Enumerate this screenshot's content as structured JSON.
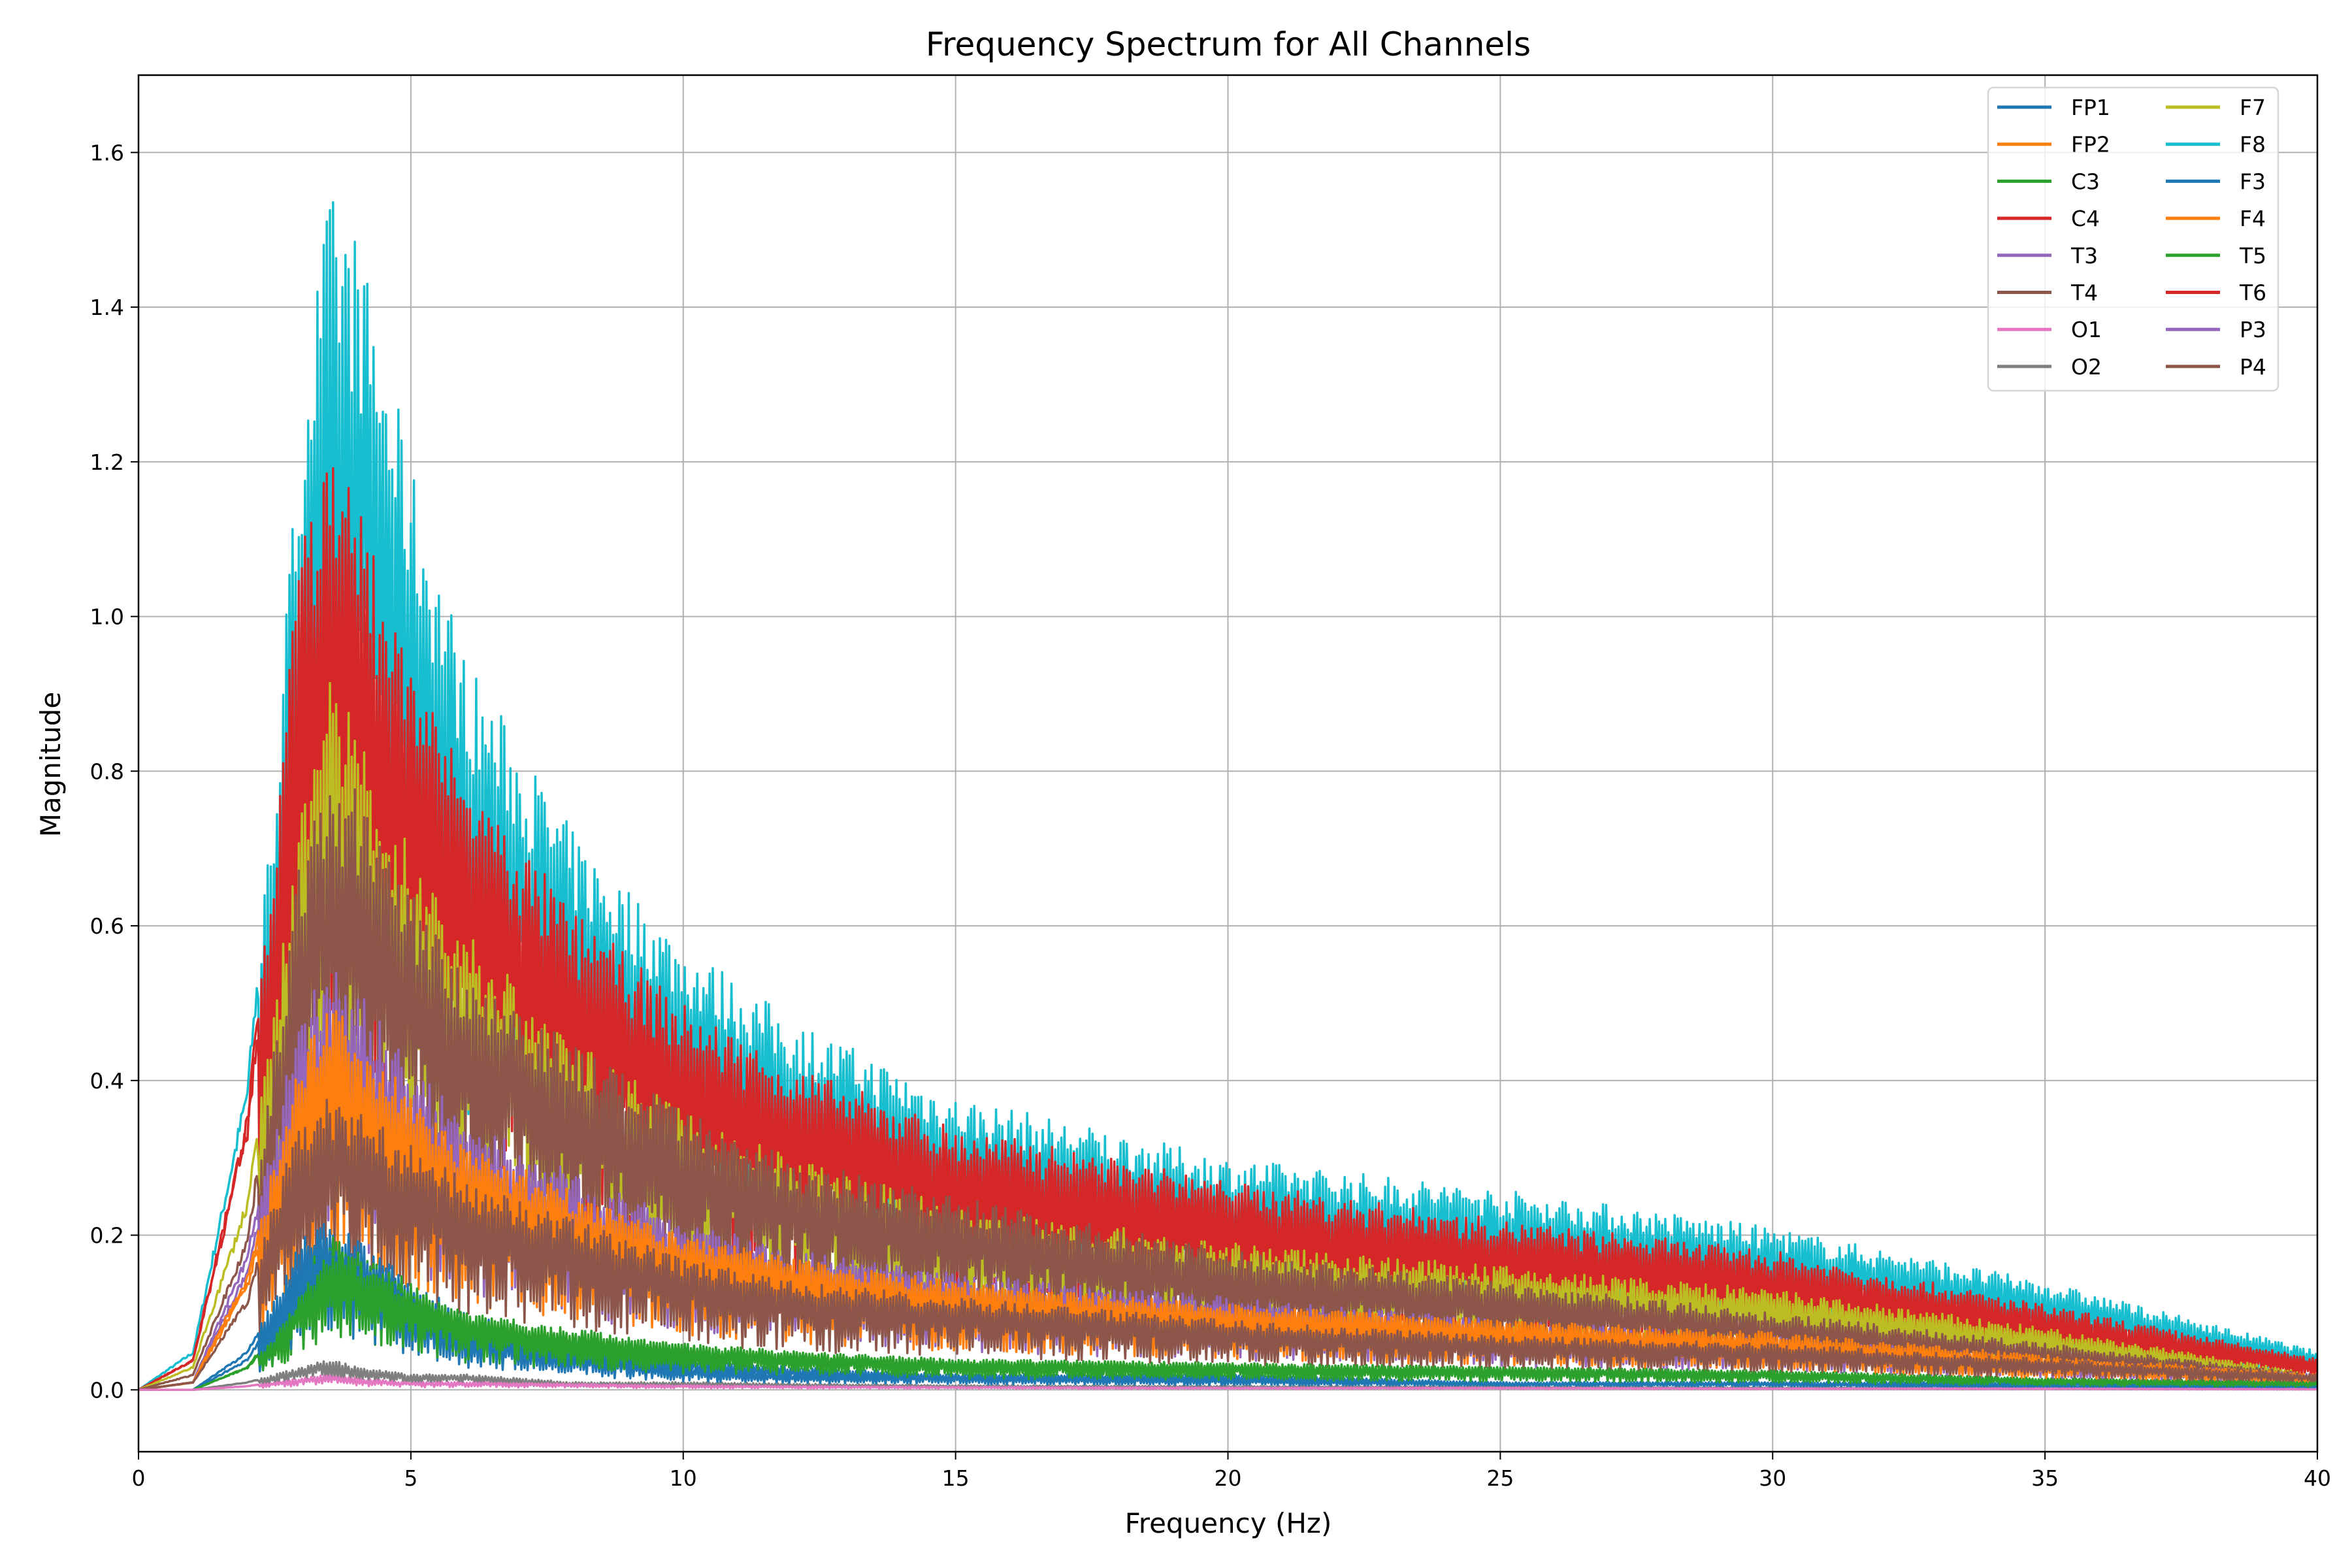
{
  "chart_data": {
    "type": "line",
    "title": "Frequency Spectrum for All Channels",
    "xlabel": "Frequency (Hz)",
    "ylabel": "Magnitude",
    "xlim": [
      0,
      40
    ],
    "ylim": [
      -0.08,
      1.7
    ],
    "xticks": [
      "0",
      "5",
      "10",
      "15",
      "20",
      "25",
      "30",
      "35",
      "40"
    ],
    "yticks": [
      "0.0",
      "0.2",
      "0.4",
      "0.6",
      "0.8",
      "1.0",
      "1.2",
      "1.4",
      "1.6"
    ],
    "grid": true,
    "legend_placement": "top-right",
    "legend_columns": 2,
    "x": [
      0,
      1,
      2,
      2.5,
      3,
      3.5,
      4,
      5,
      6,
      8,
      10,
      12,
      15,
      20,
      25,
      30,
      35,
      40
    ],
    "series": [
      {
        "name": "FP1",
        "color": "#1f77b4",
        "values": [
          0,
          0,
          0.05,
          0.12,
          0.2,
          0.22,
          0.2,
          0.14,
          0.1,
          0.06,
          0.04,
          0.03,
          0.02,
          0.02,
          0.01,
          0.01,
          0.01,
          0.005
        ]
      },
      {
        "name": "FP2",
        "color": "#ff7f0e",
        "values": [
          0,
          0.01,
          0.15,
          0.3,
          0.45,
          0.5,
          0.47,
          0.38,
          0.32,
          0.26,
          0.2,
          0.17,
          0.14,
          0.11,
          0.09,
          0.07,
          0.04,
          0.02
        ]
      },
      {
        "name": "C3",
        "color": "#2ca02c",
        "values": [
          0,
          0,
          0.03,
          0.08,
          0.15,
          0.2,
          0.18,
          0.14,
          0.1,
          0.08,
          0.06,
          0.05,
          0.04,
          0.035,
          0.03,
          0.025,
          0.015,
          0.01
        ]
      },
      {
        "name": "C4",
        "color": "#d62728",
        "values": [
          0,
          0.04,
          0.35,
          0.7,
          1.1,
          1.2,
          1.12,
          0.93,
          0.78,
          0.6,
          0.48,
          0.4,
          0.33,
          0.26,
          0.21,
          0.17,
          0.1,
          0.04
        ]
      },
      {
        "name": "T3",
        "color": "#9467bd",
        "values": [
          0,
          0.01,
          0.18,
          0.35,
          0.5,
          0.55,
          0.52,
          0.42,
          0.35,
          0.28,
          0.22,
          0.18,
          0.15,
          0.12,
          0.09,
          0.07,
          0.04,
          0.02
        ]
      },
      {
        "name": "T4",
        "color": "#8c564b",
        "values": [
          0,
          0.02,
          0.2,
          0.45,
          0.7,
          0.8,
          0.78,
          0.65,
          0.55,
          0.45,
          0.36,
          0.3,
          0.25,
          0.18,
          0.14,
          0.1,
          0.06,
          0.02
        ]
      },
      {
        "name": "O1",
        "color": "#e377c2",
        "values": [
          0,
          0,
          0.005,
          0.01,
          0.015,
          0.02,
          0.015,
          0.01,
          0.01,
          0.008,
          0.006,
          0.005,
          0.004,
          0.003,
          0.003,
          0.002,
          0.002,
          0.001
        ]
      },
      {
        "name": "O2",
        "color": "#7f7f7f",
        "values": [
          0,
          0,
          0.01,
          0.02,
          0.03,
          0.04,
          0.03,
          0.02,
          0.02,
          0.01,
          0.01,
          0.008,
          0.006,
          0.005,
          0.004,
          0.003,
          0.002,
          0.001
        ]
      },
      {
        "name": "F7",
        "color": "#bcbd22",
        "values": [
          0,
          0.03,
          0.25,
          0.5,
          0.8,
          0.92,
          0.86,
          0.7,
          0.6,
          0.45,
          0.36,
          0.3,
          0.24,
          0.19,
          0.16,
          0.13,
          0.08,
          0.02
        ]
      },
      {
        "name": "F8",
        "color": "#17becf",
        "values": [
          0,
          0.05,
          0.4,
          0.8,
          1.3,
          1.55,
          1.5,
          1.2,
          0.95,
          0.72,
          0.58,
          0.48,
          0.38,
          0.3,
          0.26,
          0.21,
          0.14,
          0.05
        ]
      },
      {
        "name": "F3",
        "color": "#1f77b4",
        "values": [
          0,
          0,
          0.04,
          0.1,
          0.18,
          0.2,
          0.18,
          0.12,
          0.08,
          0.05,
          0.03,
          0.02,
          0.02,
          0.015,
          0.01,
          0.01,
          0.005,
          0.005
        ]
      },
      {
        "name": "F4",
        "color": "#ff7f0e",
        "values": [
          0,
          0.01,
          0.14,
          0.28,
          0.42,
          0.48,
          0.45,
          0.37,
          0.31,
          0.25,
          0.2,
          0.17,
          0.14,
          0.11,
          0.09,
          0.075,
          0.045,
          0.02
        ]
      },
      {
        "name": "T5",
        "color": "#2ca02c",
        "values": [
          0,
          0,
          0.03,
          0.07,
          0.13,
          0.18,
          0.17,
          0.13,
          0.1,
          0.07,
          0.06,
          0.05,
          0.04,
          0.035,
          0.03,
          0.025,
          0.015,
          0.01
        ]
      },
      {
        "name": "T6",
        "color": "#d62728",
        "values": [
          0,
          0.04,
          0.36,
          0.72,
          1.12,
          1.22,
          1.15,
          0.95,
          0.8,
          0.62,
          0.5,
          0.42,
          0.34,
          0.27,
          0.22,
          0.18,
          0.11,
          0.04
        ]
      },
      {
        "name": "P3",
        "color": "#9467bd",
        "values": [
          0,
          0.01,
          0.16,
          0.32,
          0.46,
          0.52,
          0.49,
          0.4,
          0.33,
          0.26,
          0.21,
          0.17,
          0.14,
          0.11,
          0.085,
          0.065,
          0.04,
          0.02
        ]
      },
      {
        "name": "P4",
        "color": "#8c564b",
        "values": [
          0,
          0.01,
          0.12,
          0.25,
          0.35,
          0.38,
          0.36,
          0.32,
          0.27,
          0.22,
          0.17,
          0.14,
          0.12,
          0.09,
          0.07,
          0.06,
          0.04,
          0.02
        ]
      }
    ]
  }
}
